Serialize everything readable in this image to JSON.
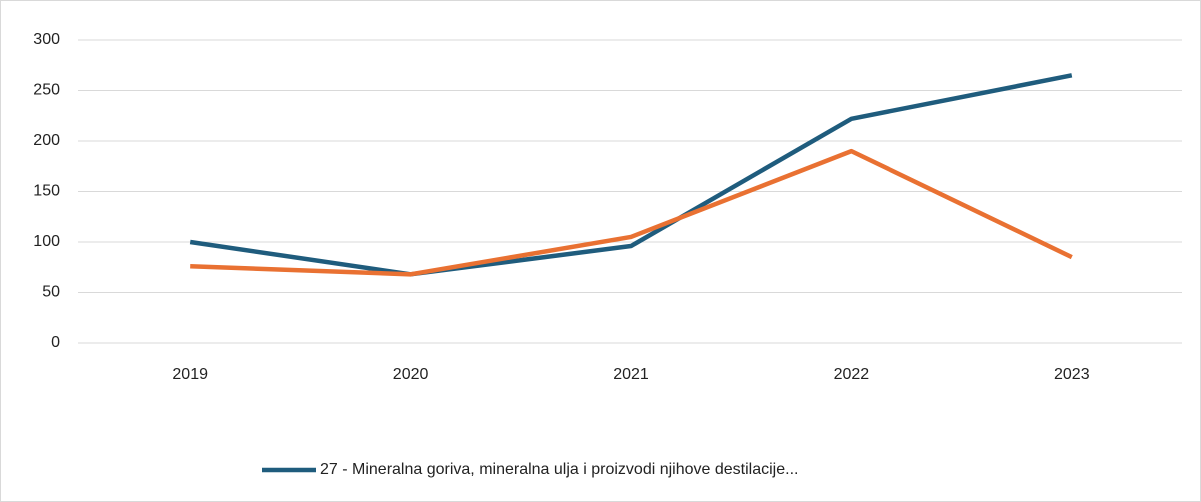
{
  "chart_data": {
    "type": "line",
    "categories": [
      "2019",
      "2020",
      "2021",
      "2022",
      "2023"
    ],
    "series": [
      {
        "name": "27 - Mineralna goriva, mineralna ulja i proizvodi njihove destilacije...",
        "color": "#1f5c7d",
        "values": [
          100,
          68,
          96,
          222,
          265
        ]
      },
      {
        "color": "#e97132",
        "values": [
          76,
          68,
          105,
          190,
          85
        ]
      }
    ],
    "ylim": [
      0,
      300
    ],
    "yticks": [
      0,
      50,
      100,
      150,
      200,
      250,
      300
    ],
    "grid": true,
    "legend": "bottom"
  }
}
